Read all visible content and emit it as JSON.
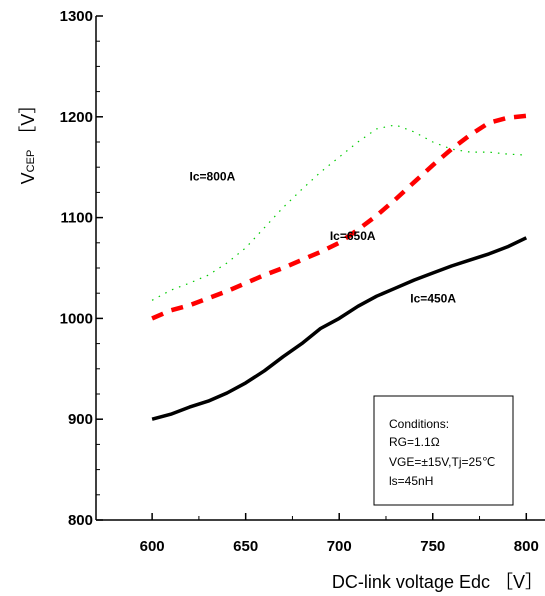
{
  "chart_data": {
    "type": "line",
    "xlabel": "DC-link voltage Edc ［V］",
    "ylabel_main": "V",
    "ylabel_sub": "CEP",
    "ylabel_unit": "［V］",
    "xlim": [
      570,
      810
    ],
    "ylim": [
      800,
      1300
    ],
    "x_ticks": [
      600,
      650,
      700,
      750,
      800
    ],
    "y_ticks": [
      800,
      900,
      1000,
      1100,
      1200,
      1300
    ],
    "grid": false,
    "series": [
      {
        "name": "Ic=450A",
        "color": "#000000",
        "style": "solid",
        "x": [
          600,
          610,
          620,
          630,
          640,
          650,
          660,
          670,
          680,
          690,
          700,
          710,
          720,
          730,
          740,
          750,
          760,
          770,
          780,
          790,
          800
        ],
        "y": [
          900,
          905,
          912,
          918,
          926,
          936,
          948,
          962,
          975,
          990,
          1000,
          1012,
          1022,
          1030,
          1038,
          1045,
          1052,
          1058,
          1064,
          1071,
          1080
        ]
      },
      {
        "name": "Ic=650A",
        "color": "#ff0000",
        "style": "dashed",
        "x": [
          600,
          610,
          620,
          630,
          640,
          650,
          660,
          670,
          680,
          690,
          700,
          710,
          720,
          730,
          740,
          750,
          760,
          770,
          780,
          790,
          800
        ],
        "y": [
          1000,
          1008,
          1013,
          1020,
          1027,
          1035,
          1043,
          1050,
          1058,
          1066,
          1075,
          1088,
          1102,
          1118,
          1135,
          1152,
          1168,
          1182,
          1194,
          1199,
          1201
        ]
      },
      {
        "name": "Ic=800A",
        "color": "#00cc00",
        "style": "dotted",
        "x": [
          600,
          610,
          620,
          630,
          640,
          650,
          660,
          670,
          680,
          690,
          700,
          710,
          720,
          730,
          740,
          750,
          760,
          770,
          780,
          790,
          800
        ],
        "y": [
          1018,
          1028,
          1035,
          1043,
          1055,
          1070,
          1090,
          1110,
          1128,
          1145,
          1160,
          1175,
          1188,
          1192,
          1185,
          1175,
          1168,
          1165,
          1165,
          1163,
          1162
        ]
      }
    ],
    "series_labels": [
      {
        "text": "Ic=450A",
        "x": 738,
        "y": 1016
      },
      {
        "text": "Ic=650A",
        "x": 695,
        "y": 1078
      },
      {
        "text": "Ic=800A",
        "x": 620,
        "y": 1137
      }
    ]
  },
  "conditions": {
    "title": "Conditions:",
    "line1": "RG=1.1Ω",
    "line2": "VGE=±15V,Tj=25℃",
    "line3": "ls=45nH"
  }
}
